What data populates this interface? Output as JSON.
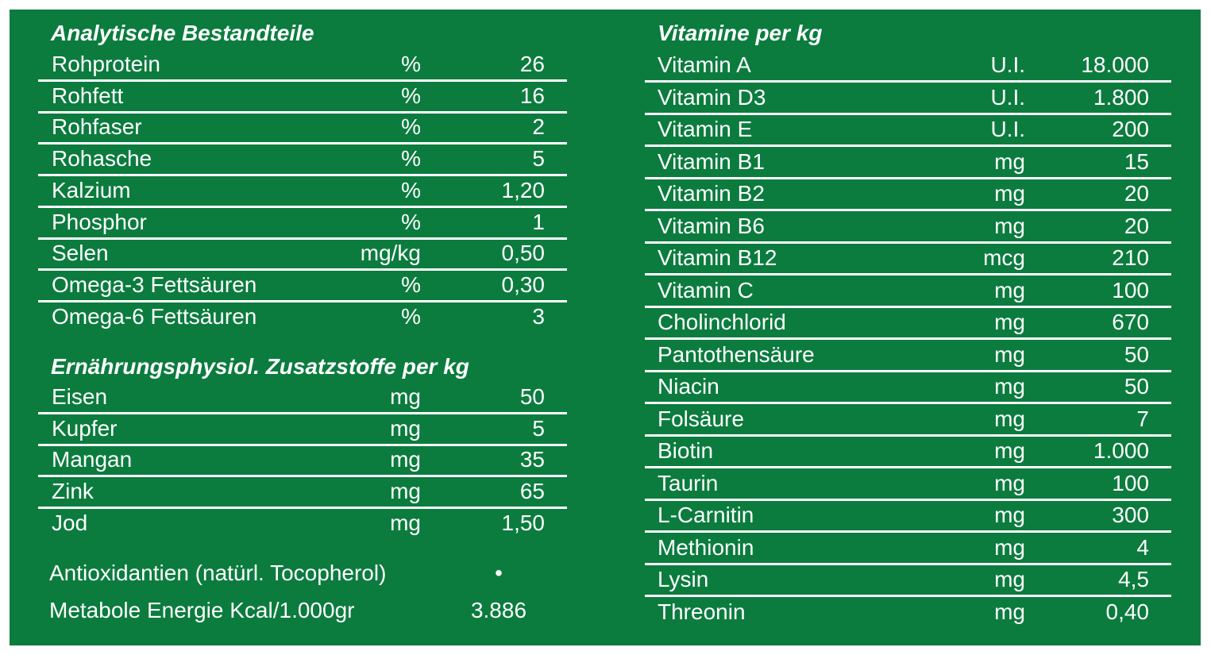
{
  "left": {
    "sections": [
      {
        "title": "Analytische Bestandteile",
        "rows": [
          [
            "Rohprotein",
            "%",
            "26"
          ],
          [
            "Rohfett",
            "%",
            "16"
          ],
          [
            "Rohfaser",
            "%",
            "2"
          ],
          [
            "Rohasche",
            "%",
            "5"
          ],
          [
            "Kalzium",
            "%",
            "1,20"
          ],
          [
            "Phosphor",
            "%",
            "1"
          ],
          [
            "Selen",
            "mg/kg",
            "0,50"
          ],
          [
            "Omega-3 Fettsäuren",
            "%",
            "0,30"
          ],
          [
            "Omega-6 Fettsäuren",
            "%",
            "3"
          ]
        ]
      },
      {
        "title": "Ernährungsphysiol. Zusatzstoffe per kg",
        "rows": [
          [
            "Eisen",
            "mg",
            "50"
          ],
          [
            "Kupfer",
            "mg",
            "5"
          ],
          [
            "Mangan",
            "mg",
            "35"
          ],
          [
            "Zink",
            "mg",
            "65"
          ],
          [
            "Jod",
            "mg",
            "1,50"
          ]
        ]
      }
    ],
    "notes": [
      [
        "Antioxidantien (natürl. Tocopherol)",
        "•"
      ],
      [
        "Metabole Energie Kcal/1.000gr",
        "3.886"
      ]
    ]
  },
  "right": {
    "title": "Vitamine per kg",
    "rows": [
      [
        "Vitamin A",
        "U.I.",
        "18.000"
      ],
      [
        "Vitamin D3",
        "U.I.",
        "1.800"
      ],
      [
        "Vitamin E",
        "U.I.",
        "200"
      ],
      [
        "Vitamin B1",
        "mg",
        "15"
      ],
      [
        "Vitamin B2",
        "mg",
        "20"
      ],
      [
        "Vitamin B6",
        "mg",
        "20"
      ],
      [
        "Vitamin B12",
        "mcg",
        "210"
      ],
      [
        "Vitamin C",
        "mg",
        "100"
      ],
      [
        "Cholinchlorid",
        "mg",
        "670"
      ],
      [
        "Pantothensäure",
        "mg",
        "50"
      ],
      [
        "Niacin",
        "mg",
        "50"
      ],
      [
        "Folsäure",
        "mg",
        "7"
      ],
      [
        "Biotin",
        "mg",
        "1.000"
      ],
      [
        "Taurin",
        "mg",
        "100"
      ],
      [
        "L-Carnitin",
        "mg",
        "300"
      ],
      [
        "Methionin",
        "mg",
        "4"
      ],
      [
        "Lysin",
        "mg",
        "4,5"
      ],
      [
        "Threonin",
        "mg",
        "0,40"
      ]
    ]
  }
}
